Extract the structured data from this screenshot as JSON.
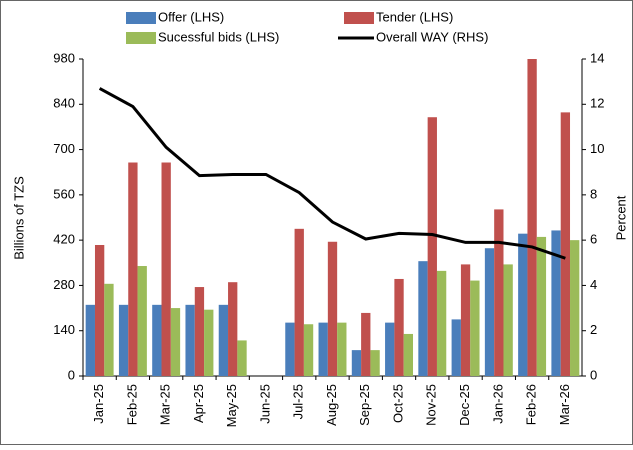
{
  "chart_data": {
    "type": "bar_line",
    "categories": [
      "Jan-25",
      "Feb-25",
      "Mar-25",
      "Apr-25",
      "May-25",
      "Jun-25",
      "Jul-25",
      "Aug-25",
      "Sep-25",
      "Oct-25",
      "Nov-25",
      "Dec-25",
      "Jan-26",
      "Feb-26",
      "Mar-26"
    ],
    "y_label": "Billions of TZS",
    "y2_label": "Percent",
    "ylim": [
      0,
      980
    ],
    "yticks": [
      0,
      140,
      280,
      420,
      560,
      700,
      840,
      980
    ],
    "y2lim": [
      0,
      14
    ],
    "y2ticks": [
      0,
      2,
      4,
      6,
      8,
      10,
      12,
      14
    ],
    "series": [
      {
        "name": "Offer (LHS)",
        "color": "#4a7ebb",
        "kind": "bar",
        "values": [
          220,
          220,
          220,
          220,
          220,
          null,
          165,
          165,
          80,
          165,
          355,
          175,
          395,
          440,
          450
        ]
      },
      {
        "name": "Tender (LHS)",
        "color": "#c0504d",
        "kind": "bar",
        "values": [
          405,
          660,
          660,
          275,
          290,
          null,
          455,
          415,
          195,
          300,
          800,
          345,
          515,
          980,
          815
        ]
      },
      {
        "name": "Sucessful bids (LHS)",
        "color": "#9bbb59",
        "kind": "bar",
        "values": [
          285,
          340,
          210,
          205,
          110,
          null,
          160,
          165,
          80,
          130,
          325,
          295,
          345,
          430,
          420
        ]
      },
      {
        "name": "Overall WAY (RHS)",
        "color": "#000000",
        "kind": "line",
        "axis": "y2",
        "values": [
          12.7,
          11.9,
          10.1,
          8.85,
          8.9,
          8.9,
          8.1,
          6.8,
          6.05,
          6.3,
          6.25,
          5.9,
          5.9,
          5.7,
          5.2
        ]
      }
    ]
  }
}
